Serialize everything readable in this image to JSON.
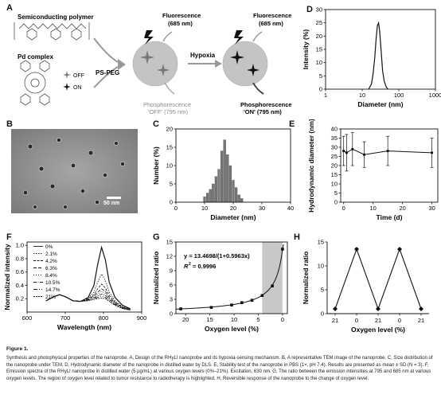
{
  "panel_labels": {
    "A": "A",
    "B": "B",
    "C": "C",
    "D": "D",
    "E": "E",
    "F": "F",
    "G": "G",
    "H": "H"
  },
  "panel_a": {
    "semiconducting_polymer": "Semiconducting polymer",
    "pd_complex": "Pd complex",
    "off": "OFF",
    "on": "ON",
    "ps_peg": "PS-PEG",
    "hypoxia": "Hypoxia",
    "fluorescence_1": "Fluorescence",
    "fluorescence_1_nm": "(685 nm)",
    "fluorescence_2": "Fluorescence",
    "fluorescence_2_nm": "(685 nm)",
    "phos_off_1": "Phosphorescence",
    "phos_off_2": "'OFF' (795 nm)",
    "phos_on_1": "Phosphorescence",
    "phos_on_2": "'ON' (795 nm)",
    "colors": {
      "nanoparticle": "#bdbdbd",
      "off_star": "#777777",
      "on_star": "#111111",
      "arrow": "#999999"
    }
  },
  "panel_b": {
    "scale_bar": "50 nm"
  },
  "chart_data": [
    {
      "panel": "C",
      "type": "bar",
      "xlabel": "Diameter (nm)",
      "ylabel": "Number (%)",
      "xlim": [
        0,
        40
      ],
      "ylim": [
        0,
        20
      ],
      "xticks": [
        0,
        10,
        20,
        30,
        40
      ],
      "yticks": [
        0,
        5,
        10,
        15,
        20
      ],
      "x": [
        10,
        11,
        12,
        13,
        14,
        15,
        16,
        17,
        18,
        19,
        20,
        21,
        22,
        23
      ],
      "values": [
        1.5,
        2.5,
        3.5,
        5,
        7,
        9,
        14,
        17,
        13,
        10,
        6,
        4,
        2,
        1
      ],
      "color": "#777777"
    },
    {
      "panel": "D",
      "type": "line",
      "xlabel": "Diameter (nm)",
      "ylabel": "Intensity (%)",
      "xscale": "log",
      "xlim": [
        1,
        1000
      ],
      "ylim": [
        0,
        30
      ],
      "xticks": [
        1,
        10,
        100,
        1000
      ],
      "xtick_labels": [
        "1",
        "10",
        "100",
        "1000"
      ],
      "yticks": [
        0,
        5,
        10,
        15,
        20,
        25,
        30
      ],
      "x": [
        15,
        18,
        20,
        22,
        24,
        26,
        28,
        30,
        33,
        36,
        40,
        45,
        50
      ],
      "y": [
        0,
        2,
        6,
        12,
        19,
        24,
        25,
        22,
        14,
        7,
        3,
        1,
        0
      ]
    },
    {
      "panel": "E",
      "type": "line",
      "xlabel": "Time (d)",
      "ylabel": "Hydrodynamic diameter (nm)",
      "xlim": [
        -1,
        32
      ],
      "ylim": [
        0,
        40
      ],
      "xticks": [
        0,
        10,
        20,
        30
      ],
      "yticks": [
        0,
        5,
        10,
        15,
        20,
        25,
        30,
        35,
        40
      ],
      "x": [
        0,
        1,
        3,
        7,
        15,
        30
      ],
      "y": [
        28,
        27,
        29,
        26,
        28,
        27
      ],
      "err": [
        8,
        10,
        9,
        7,
        8,
        8
      ]
    },
    {
      "panel": "F",
      "type": "line",
      "xlabel": "Wavelength (nm)",
      "ylabel": "Normalized intensity",
      "xlim": [
        600,
        900
      ],
      "ylim": [
        0,
        1.05
      ],
      "xticks": [
        600,
        700,
        800,
        900
      ],
      "yticks": [
        0.2,
        0.4,
        0.6,
        0.8,
        1.0
      ],
      "ytick_labels": [
        "0.2",
        "0.4",
        "0.6",
        "0.8",
        "1.0"
      ],
      "legend_position": "top-left",
      "x": [
        650,
        670,
        685,
        700,
        720,
        740,
        760,
        775,
        785,
        795,
        805,
        815,
        830,
        850,
        870
      ],
      "series": [
        {
          "name": "0%",
          "dash": "",
          "values": [
            0.17,
            0.23,
            0.26,
            0.23,
            0.17,
            0.16,
            0.22,
            0.4,
            0.72,
            0.97,
            0.78,
            0.45,
            0.22,
            0.1,
            0.05
          ]
        },
        {
          "name": "2.1%",
          "dash": "1.5,1.5",
          "values": [
            0.17,
            0.23,
            0.26,
            0.23,
            0.17,
            0.16,
            0.21,
            0.3,
            0.45,
            0.57,
            0.47,
            0.3,
            0.17,
            0.08,
            0.04
          ]
        },
        {
          "name": "4.2%",
          "dash": "3,1.5",
          "values": [
            0.17,
            0.23,
            0.26,
            0.23,
            0.17,
            0.16,
            0.2,
            0.26,
            0.35,
            0.42,
            0.36,
            0.25,
            0.15,
            0.07,
            0.04
          ]
        },
        {
          "name": "6.3%",
          "dash": "4,2",
          "values": [
            0.17,
            0.23,
            0.26,
            0.23,
            0.17,
            0.16,
            0.19,
            0.24,
            0.3,
            0.35,
            0.31,
            0.22,
            0.14,
            0.07,
            0.04
          ]
        },
        {
          "name": "8.4%",
          "dash": "1,2",
          "values": [
            0.17,
            0.23,
            0.26,
            0.23,
            0.17,
            0.16,
            0.19,
            0.22,
            0.27,
            0.31,
            0.28,
            0.2,
            0.13,
            0.06,
            0.03
          ]
        },
        {
          "name": "10.5%",
          "dash": "4,1.5,1,1.5",
          "values": [
            0.17,
            0.23,
            0.26,
            0.23,
            0.17,
            0.16,
            0.18,
            0.21,
            0.24,
            0.27,
            0.25,
            0.19,
            0.12,
            0.06,
            0.03
          ]
        },
        {
          "name": "14.7%",
          "dash": "5,2,1,2,1,2",
          "values": [
            0.17,
            0.23,
            0.26,
            0.23,
            0.17,
            0.16,
            0.18,
            0.2,
            0.22,
            0.24,
            0.22,
            0.17,
            0.11,
            0.06,
            0.03
          ]
        },
        {
          "name": "21%",
          "dash": "2,1",
          "values": [
            0.17,
            0.23,
            0.26,
            0.23,
            0.17,
            0.16,
            0.17,
            0.19,
            0.2,
            0.21,
            0.2,
            0.16,
            0.1,
            0.05,
            0.03
          ]
        }
      ]
    },
    {
      "panel": "G",
      "type": "scatter",
      "xlabel": "Oxygen level (%)",
      "ylabel": "Normalized ratio",
      "xlim": [
        22,
        -1
      ],
      "ylim": [
        0,
        15
      ],
      "xticks": [
        20,
        15,
        10,
        5,
        0
      ],
      "yticks": [
        0,
        3,
        6,
        9,
        12,
        15
      ],
      "equation": "y = 13.4698/(1+0.5963x)",
      "r2_label": "R",
      "r2_value": "= 0.9996",
      "x": [
        21,
        14.7,
        10.5,
        8.4,
        6.3,
        4.2,
        2.1,
        0
      ],
      "y": [
        1,
        1.3,
        1.8,
        2.3,
        2.8,
        3.8,
        5.8,
        13.5
      ],
      "fit": {
        "a": 13.4698,
        "b": 0.5963
      },
      "highlight_region": [
        0,
        4.2
      ],
      "highlight_color": "#c8c8c8"
    },
    {
      "panel": "H",
      "type": "line",
      "xlabel": "Oxygen level (%)",
      "ylabel": "Normalized ratio",
      "ylim": [
        0,
        15
      ],
      "categories": [
        "21",
        "0",
        "21",
        "0",
        "21"
      ],
      "yticks": [
        0,
        5,
        10,
        15
      ],
      "values": [
        1,
        13.5,
        1,
        13.5,
        1
      ]
    }
  ],
  "caption": {
    "title": "Figure 1.",
    "body": "Synthesis and photophysical properties of the nanoprobe. A, Design of the RHyLI nanoprobe and its hypoxia-sensing mechanism. B, A representative TEM image of the nanoprobe. C, Size distribution of the nanoprobe under TEM. D, Hydrodynamic diameter of the nanoprobe in distilled water by DLS. E, Stability test of the nanoprobe in PBS (1×, pH 7.4). Results are presented as mean ± SD (N = 3). F, Emission spectra of the RHyLI nanoprobe in distilled water (5 μg/mL) at various oxygen levels (0%–21%). Excitation, 630 nm. G, The ratio between the emission intensities at 795 and 685 nm at various oxygen levels. The region of oxygen level related to tumor resistance to radiotherapy is highlighted. H, Reversible response of the nanoprobe to the change of oxygen level."
  }
}
